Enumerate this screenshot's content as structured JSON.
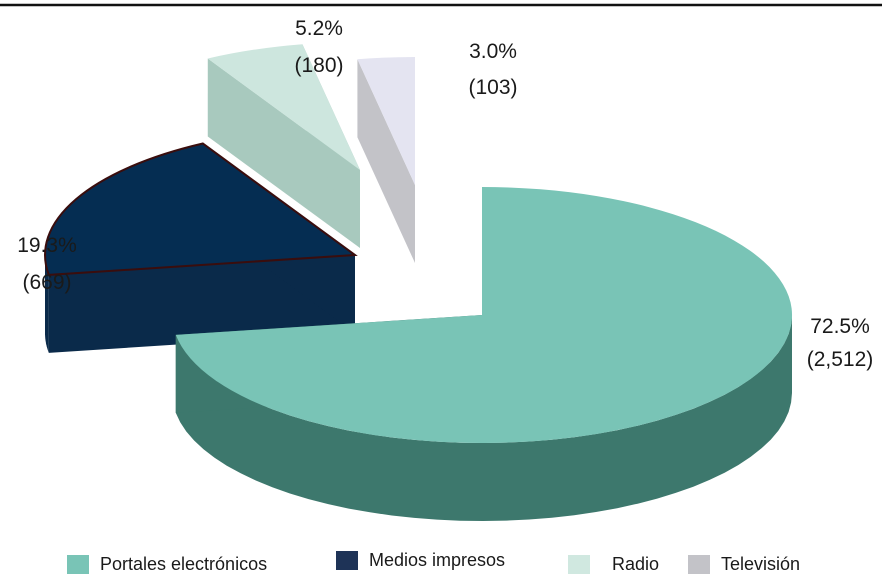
{
  "chart_data": {
    "type": "pie",
    "title": "",
    "labels": [
      "Portales electrónicos",
      "Medios impresos",
      "Radio",
      "Televisión"
    ],
    "values": [
      2512,
      669,
      180,
      103
    ],
    "percentages": [
      "72.5%",
      "19.3%",
      "5.2%",
      "3.0%"
    ],
    "value_labels": [
      "(2,512)",
      "(669)",
      "(180)",
      "(103)"
    ],
    "colors": {
      "portales": "#79c4b6",
      "medios": "#052d52",
      "radio": "#cde6de",
      "television": "#e4e4f1"
    },
    "side_colors": {
      "portales": "#3d786d",
      "medios": "#0a2a4a",
      "radio": "#a8c9be",
      "television": "#c3c3c8"
    },
    "legend_placement": "bottom",
    "style": "3d-exploded"
  },
  "legend": {
    "items": [
      {
        "label": "Portales electrónicos",
        "color": "#79c4b6"
      },
      {
        "label": "Medios impresos",
        "color": "#1e3357"
      },
      {
        "label": "Radio",
        "color": "#d0e8e0"
      },
      {
        "label": "Televisión",
        "color": "#c3c3c8"
      }
    ]
  }
}
